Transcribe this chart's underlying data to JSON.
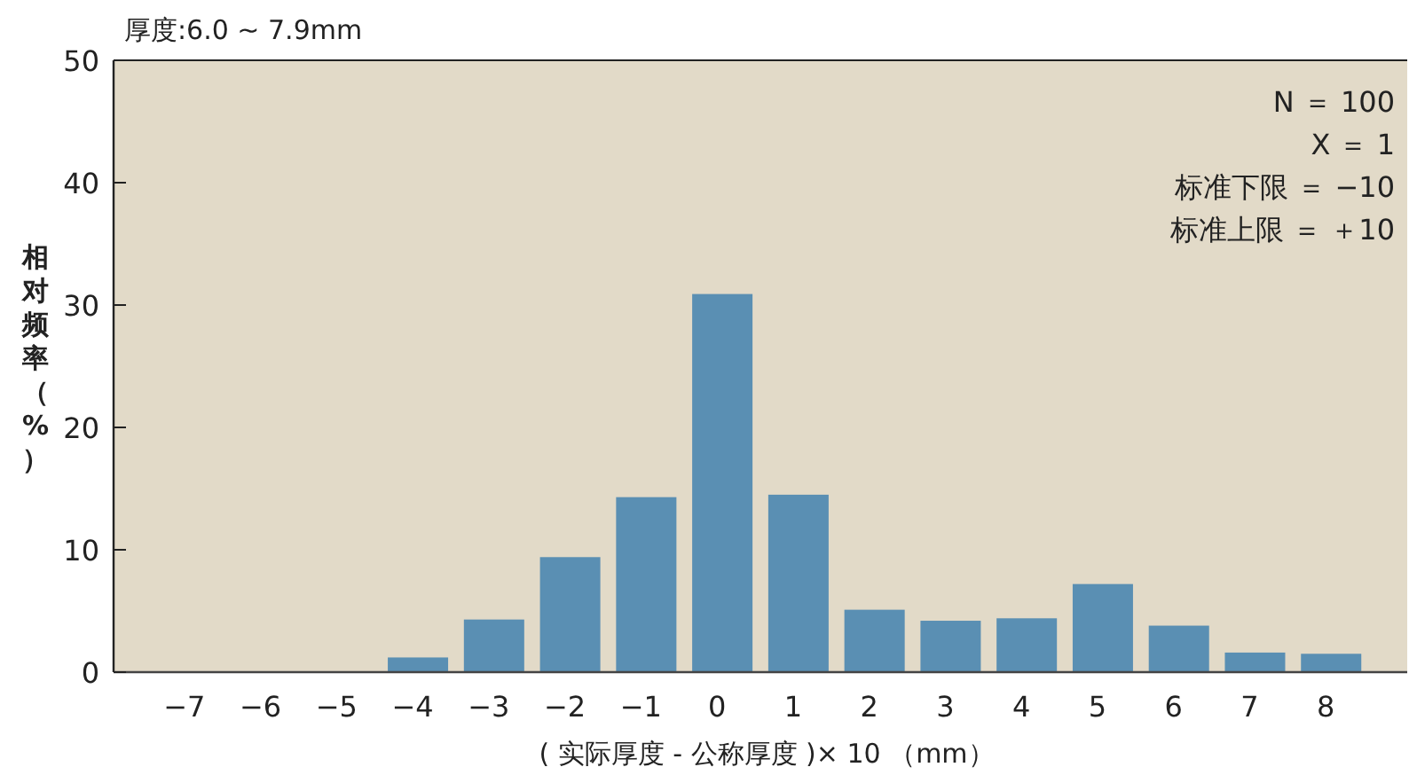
{
  "chart_data": {
    "type": "bar",
    "title": "厚度:6.0 ~ 7.9mm",
    "xlabel": "( 实际厚度 - 公称厚度 )× 10 （mm）",
    "ylabel": "相对频率（%）",
    "categories": [
      "−7",
      "−6",
      "−5",
      "−4",
      "−3",
      "−2",
      "−1",
      "0",
      "1",
      "2",
      "3",
      "4",
      "5",
      "6",
      "7",
      "8"
    ],
    "values": [
      0,
      0,
      0,
      1.2,
      4.3,
      9.4,
      14.3,
      30.9,
      14.5,
      5.1,
      4.2,
      4.4,
      7.2,
      3.8,
      1.6,
      1.5
    ],
    "color": "#5a8fb3",
    "ylim": [
      0,
      50
    ],
    "yticks": [
      0,
      10,
      20,
      30,
      40,
      50
    ],
    "grid": false,
    "annotations": [
      "N ＝ 100",
      "X ＝ 1",
      "标准下限 ＝ −10",
      "标准上限 ＝ ＋10"
    ]
  }
}
